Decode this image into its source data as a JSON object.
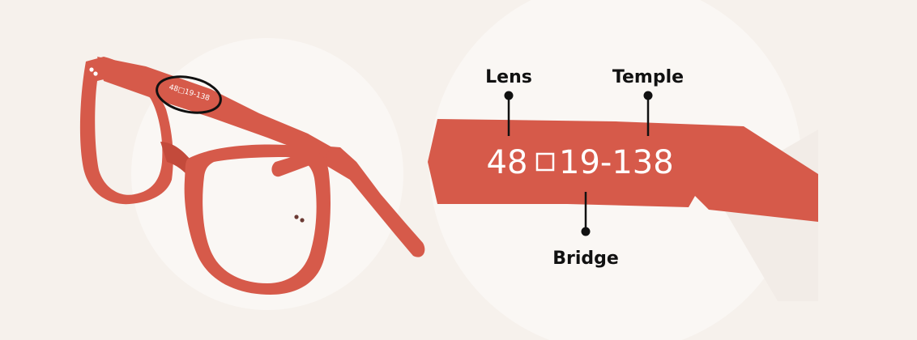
{
  "colors": {
    "background": "#f6f1ec",
    "frame": "#d65a4a",
    "frame_dark": "#c34a3b",
    "circle": "#faf7f4",
    "text_on_frame": "#ffffff",
    "label_text": "#111111"
  },
  "size_code": {
    "lens": "48",
    "bridge": "19",
    "temple": "138",
    "separator": "-",
    "small_print": "48□19-138"
  },
  "labels": {
    "lens": "Lens",
    "temple": "Temple",
    "bridge": "Bridge"
  },
  "icons": {
    "square_symbol": "square-icon"
  }
}
